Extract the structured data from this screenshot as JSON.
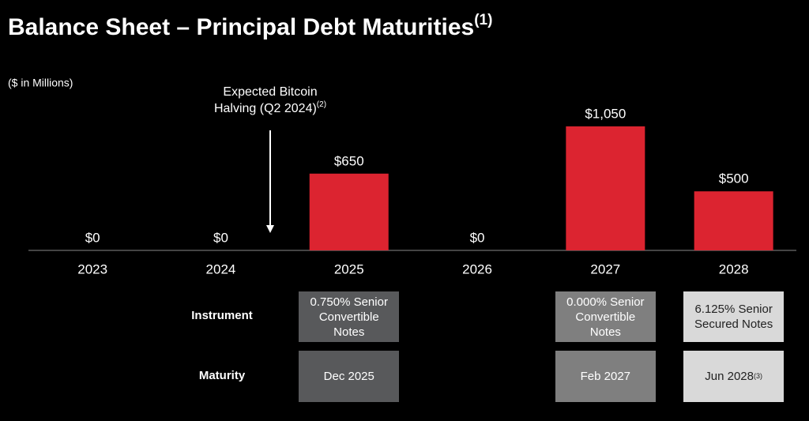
{
  "title": "Balance Sheet – Principal Debt Maturities",
  "title_note": "(1)",
  "chart_data": {
    "type": "bar",
    "subtitle": "($ in Millions)",
    "categories": [
      "2023",
      "2024",
      "2025",
      "2026",
      "2027",
      "2028"
    ],
    "values": [
      0,
      0,
      650,
      0,
      1050,
      500
    ],
    "value_labels": [
      "$0",
      "$0",
      "$650",
      "$0",
      "$1,050",
      "$500"
    ],
    "color": "#dc2430",
    "annotation": {
      "lines": [
        "Expected Bitcoin",
        "Halving (Q2 2024)"
      ],
      "note": "(2)"
    }
  },
  "table": {
    "rows": [
      {
        "label": "Instrument",
        "cells": [
          null,
          null,
          "0.750% Senior Convertible Notes",
          null,
          "0.000% Senior Convertible Notes",
          "6.125% Senior Secured Notes"
        ]
      },
      {
        "label": "Maturity",
        "cells": [
          null,
          null,
          "Dec 2025",
          null,
          "Feb 2027",
          "Jun 2028"
        ],
        "notes": [
          null,
          null,
          null,
          null,
          null,
          "(3)"
        ]
      }
    ]
  }
}
